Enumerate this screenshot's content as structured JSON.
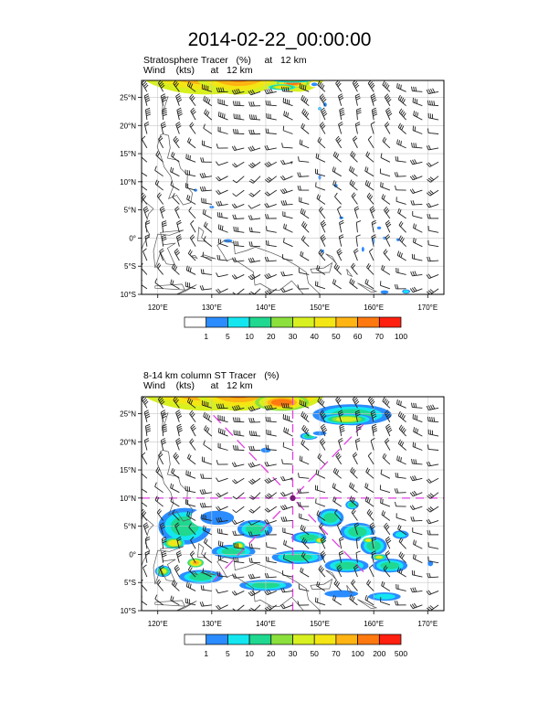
{
  "title": "2014-02-22_00:00:00",
  "colors": {
    "frame": "#000000",
    "grid": "#c8c8c8",
    "coast": "#555555",
    "barb": "#222222",
    "dash": "#e040e0",
    "marker": "#7a1a7a"
  },
  "chart_data": [
    {
      "type": "heatmap",
      "subtitle1": "Stratosphere Tracer   (%)     at   12 km",
      "subtitle2": "Wind    (kts)      at   12 km",
      "xlim": [
        117,
        173
      ],
      "ylim": [
        -10,
        28
      ],
      "x_ticks": [
        {
          "v": 120,
          "t": "120°E"
        },
        {
          "v": 130,
          "t": "130°E"
        },
        {
          "v": 140,
          "t": "140°E"
        },
        {
          "v": 150,
          "t": "150°E"
        },
        {
          "v": 160,
          "t": "160°E"
        },
        {
          "v": 170,
          "t": "170°E"
        }
      ],
      "y_ticks": [
        {
          "v": 25,
          "t": "25°N"
        },
        {
          "v": 20,
          "t": "20°N"
        },
        {
          "v": 15,
          "t": "15°N"
        },
        {
          "v": 10,
          "t": "10°N"
        },
        {
          "v": 5,
          "t": "5°N"
        },
        {
          "v": 0,
          "t": "0°"
        },
        {
          "v": -5,
          "t": "5°S"
        },
        {
          "v": -10,
          "t": "10°S"
        }
      ],
      "levels": [
        "1",
        "5",
        "10",
        "20",
        "30",
        "40",
        "50",
        "60",
        "70",
        "100"
      ],
      "colorbar": [
        "#ffffff",
        "#2b8cff",
        "#14e6f0",
        "#20d890",
        "#8ce03c",
        "#d8f020",
        "#f4e614",
        "#ffb414",
        "#ff7810",
        "#ff2010"
      ],
      "show_dash": false
    },
    {
      "type": "heatmap",
      "subtitle1": "8-14 km column ST Tracer   (%)",
      "subtitle2": "Wind    (kts)      at   12 km",
      "xlim": [
        117,
        173
      ],
      "ylim": [
        -10,
        28
      ],
      "x_ticks": [
        {
          "v": 120,
          "t": "120°E"
        },
        {
          "v": 130,
          "t": "130°E"
        },
        {
          "v": 140,
          "t": "140°E"
        },
        {
          "v": 150,
          "t": "150°E"
        },
        {
          "v": 160,
          "t": "160°E"
        },
        {
          "v": 170,
          "t": "170°E"
        }
      ],
      "y_ticks": [
        {
          "v": 25,
          "t": "25°N"
        },
        {
          "v": 20,
          "t": "20°N"
        },
        {
          "v": 15,
          "t": "15°N"
        },
        {
          "v": 10,
          "t": "10°N"
        },
        {
          "v": 5,
          "t": "5°N"
        },
        {
          "v": 0,
          "t": "0°"
        },
        {
          "v": -5,
          "t": "5°S"
        },
        {
          "v": -10,
          "t": "10°S"
        }
      ],
      "levels": [
        "1",
        "5",
        "10",
        "20",
        "30",
        "50",
        "70",
        "100",
        "200",
        "500"
      ],
      "colorbar": [
        "#ffffff",
        "#2b8cff",
        "#14e6f0",
        "#20d890",
        "#8ce03c",
        "#d8f020",
        "#f4e614",
        "#ffb414",
        "#ff7810",
        "#ff2010"
      ],
      "show_dash": true,
      "dash_lines": {
        "lat": 10,
        "lon": 145
      },
      "marker": {
        "lon": 145,
        "lat": 10
      }
    }
  ]
}
